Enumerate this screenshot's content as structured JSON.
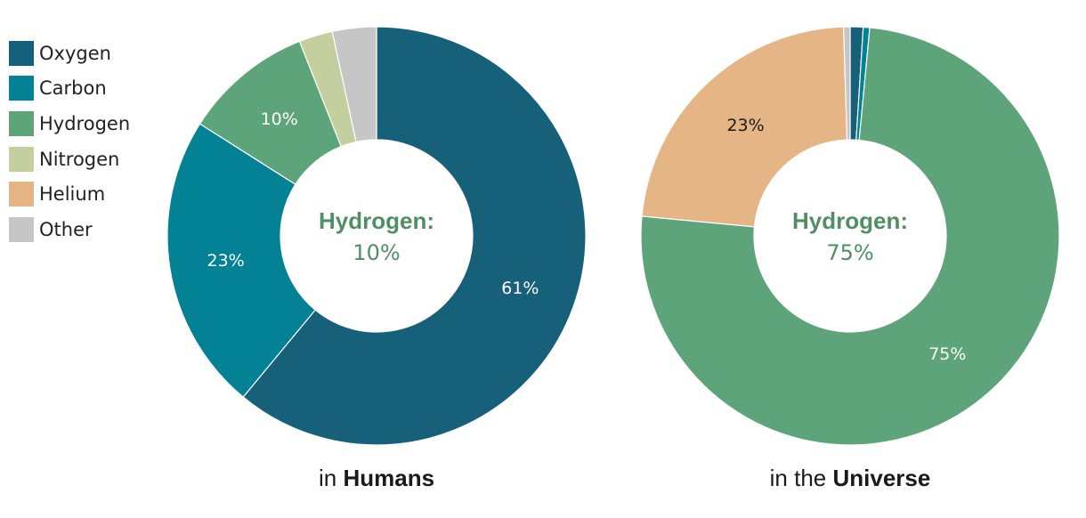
{
  "legend": {
    "items": [
      {
        "label": "Oxygen",
        "color": "#17607a"
      },
      {
        "label": "Carbon",
        "color": "#028294"
      },
      {
        "label": "Hydrogen",
        "color": "#5ea47a"
      },
      {
        "label": "Nitrogen",
        "color": "#c4cf9f"
      },
      {
        "label": "Helium",
        "color": "#e6b585"
      },
      {
        "label": "Other",
        "color": "#c6c6c6"
      }
    ]
  },
  "chart_data": [
    {
      "type": "pie",
      "caption_prefix": "in",
      "caption_bold": "Humans",
      "center_title": "Hydrogen:",
      "center_value": "10%",
      "center_color": "#4f8f63",
      "slices": [
        {
          "name": "Oxygen",
          "value": 61,
          "label": "61%",
          "label_color": "#ffffff"
        },
        {
          "name": "Carbon",
          "value": 23,
          "label": "23%",
          "label_color": "#ffffff"
        },
        {
          "name": "Hydrogen",
          "value": 10,
          "label": "10%",
          "label_color": "#ffffff"
        },
        {
          "name": "Nitrogen",
          "value": 2.6,
          "label": ""
        },
        {
          "name": "Other",
          "value": 3.4,
          "label": ""
        }
      ]
    },
    {
      "type": "pie",
      "caption_prefix": "in the",
      "caption_bold": "Universe",
      "center_title": "Hydrogen:",
      "center_value": "75%",
      "center_color": "#4f8f63",
      "slices": [
        {
          "name": "Oxygen",
          "value": 1.0,
          "label": ""
        },
        {
          "name": "Carbon",
          "value": 0.5,
          "label": ""
        },
        {
          "name": "Hydrogen",
          "value": 75,
          "label": "75%",
          "label_color": "#ffffff"
        },
        {
          "name": "Helium",
          "value": 23,
          "label": "23%",
          "label_color": "#1a1a1a"
        },
        {
          "name": "Other",
          "value": 0.5,
          "label": ""
        }
      ]
    }
  ]
}
